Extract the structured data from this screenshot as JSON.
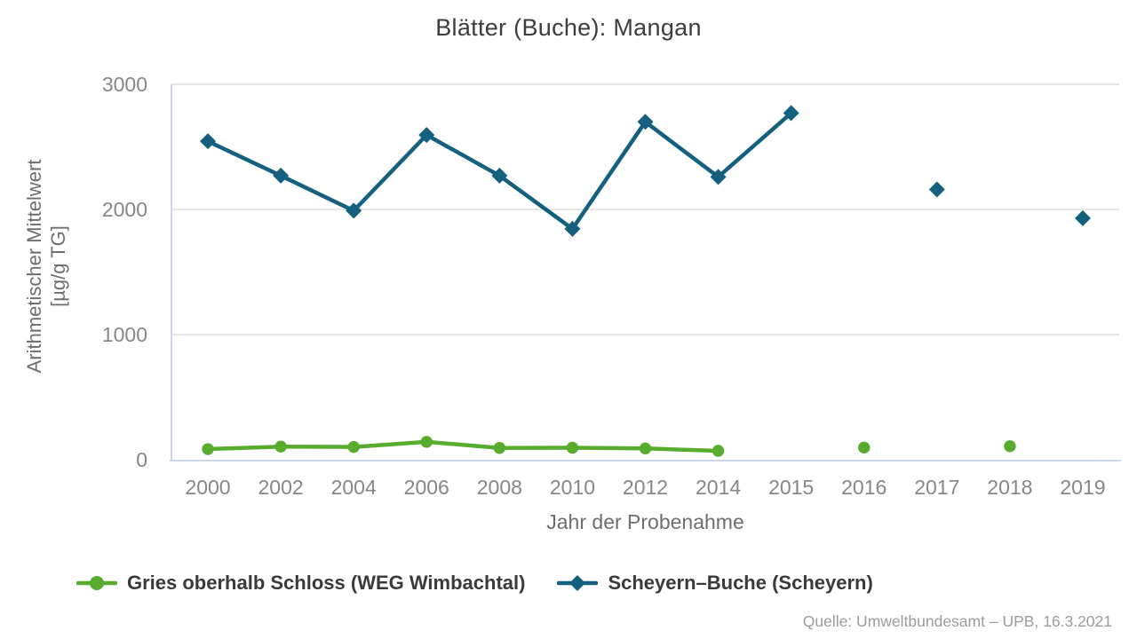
{
  "title": "Blätter (Buche): Mangan",
  "chart_data": {
    "type": "line",
    "title": "Blätter (Buche): Mangan",
    "xlabel": "Jahr der Probenahme",
    "ylabel_line1": "Arithmetischer Mittelwert",
    "ylabel_line2": "[µg/g TG]",
    "x_categories": [
      "2000",
      "2002",
      "2004",
      "2006",
      "2008",
      "2010",
      "2012",
      "2014",
      "2015",
      "2016",
      "2017",
      "2018",
      "2019"
    ],
    "y_ticks": [
      0,
      1000,
      2000,
      3000
    ],
    "ylim": [
      0,
      3000
    ],
    "grid": "horizontal",
    "legend_position": "bottom",
    "series": [
      {
        "name": "Gries oberhalb Schloss (WEG Wimbachtal)",
        "marker": "circle",
        "color": "#57ab2d",
        "values": [
          85,
          105,
          102,
          143,
          94,
          96,
          90,
          71,
          null,
          97,
          null,
          108,
          null
        ]
      },
      {
        "name": "Scheyern–Buche (Scheyern)",
        "marker": "diamond",
        "color": "#14607e",
        "values": [
          2545,
          2270,
          1990,
          2595,
          2270,
          1845,
          2700,
          2260,
          2770,
          null,
          2160,
          null,
          1930
        ]
      }
    ]
  },
  "source": "Quelle: Umweltbundesamt – UPB, 16.3.2021",
  "colors": {
    "gridline": "#e7e7e7",
    "axis_line": "#ccd6e8",
    "tick_text": "#878787",
    "axis_title_text": "#6e6e6e",
    "title_text": "#3d3d3d",
    "legend_text": "#3a3a3a",
    "source_text": "#9c9c9c",
    "background": "#ffffff"
  }
}
